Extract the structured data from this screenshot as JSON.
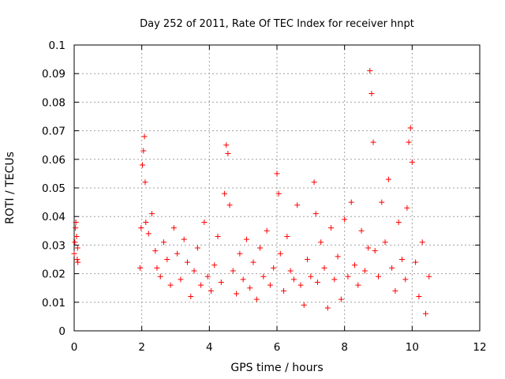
{
  "chart_data": {
    "type": "scatter",
    "title": "Day 252 of 2011, Rate Of TEC Index for receiver hnpt",
    "xlabel": "GPS time / hours",
    "ylabel": "ROTI / TECUs",
    "xlim": [
      0,
      12
    ],
    "ylim": [
      0,
      0.1
    ],
    "xticks": [
      "0",
      "2",
      "4",
      "6",
      "8",
      "10",
      "12"
    ],
    "yticks": [
      "0",
      "0.01",
      "0.02",
      "0.03",
      "0.04",
      "0.05",
      "0.06",
      "0.07",
      "0.08",
      "0.09",
      "0.1"
    ],
    "xtick_values": [
      0,
      2,
      4,
      6,
      8,
      10,
      12
    ],
    "ytick_values": [
      0,
      0.01,
      0.02,
      0.03,
      0.04,
      0.05,
      0.06,
      0.07,
      0.08,
      0.09,
      0.1
    ],
    "grid": true,
    "marker": "+",
    "color": "#ff0000",
    "series": [
      {
        "name": "ROTI",
        "x": [
          0.0,
          0.02,
          0.04,
          0.05,
          0.07,
          0.09,
          0.1,
          0.11,
          1.95,
          1.98,
          2.02,
          2.05,
          2.08,
          2.1,
          2.12,
          2.2,
          2.3,
          2.4,
          2.45,
          2.55,
          2.65,
          2.75,
          2.85,
          2.95,
          3.05,
          3.15,
          3.25,
          3.35,
          3.45,
          3.55,
          3.65,
          3.75,
          3.85,
          3.95,
          4.05,
          4.15,
          4.25,
          4.35,
          4.45,
          4.5,
          4.55,
          4.6,
          4.7,
          4.8,
          4.9,
          5.0,
          5.1,
          5.2,
          5.3,
          5.4,
          5.5,
          5.6,
          5.7,
          5.8,
          5.9,
          6.0,
          6.05,
          6.1,
          6.2,
          6.3,
          6.4,
          6.5,
          6.6,
          6.7,
          6.8,
          6.9,
          7.0,
          7.1,
          7.15,
          7.2,
          7.3,
          7.4,
          7.5,
          7.6,
          7.7,
          7.8,
          7.9,
          8.0,
          8.1,
          8.2,
          8.3,
          8.4,
          8.5,
          8.6,
          8.7,
          8.75,
          8.8,
          8.85,
          8.9,
          9.0,
          9.1,
          9.2,
          9.3,
          9.4,
          9.5,
          9.6,
          9.7,
          9.8,
          9.85,
          9.9,
          9.95,
          10.0,
          10.1,
          10.2,
          10.3,
          10.4,
          10.5
        ],
        "y": [
          0.027,
          0.031,
          0.036,
          0.038,
          0.033,
          0.025,
          0.029,
          0.024,
          0.022,
          0.036,
          0.058,
          0.063,
          0.068,
          0.052,
          0.038,
          0.034,
          0.041,
          0.028,
          0.022,
          0.019,
          0.031,
          0.025,
          0.016,
          0.036,
          0.027,
          0.018,
          0.032,
          0.024,
          0.012,
          0.021,
          0.029,
          0.016,
          0.038,
          0.019,
          0.014,
          0.023,
          0.033,
          0.017,
          0.048,
          0.065,
          0.062,
          0.044,
          0.021,
          0.013,
          0.027,
          0.018,
          0.032,
          0.015,
          0.024,
          0.011,
          0.029,
          0.019,
          0.035,
          0.016,
          0.022,
          0.055,
          0.048,
          0.027,
          0.014,
          0.033,
          0.021,
          0.018,
          0.044,
          0.016,
          0.009,
          0.025,
          0.019,
          0.052,
          0.041,
          0.017,
          0.031,
          0.022,
          0.008,
          0.036,
          0.018,
          0.026,
          0.011,
          0.039,
          0.019,
          0.045,
          0.023,
          0.016,
          0.035,
          0.021,
          0.029,
          0.091,
          0.083,
          0.066,
          0.028,
          0.019,
          0.045,
          0.031,
          0.053,
          0.022,
          0.014,
          0.038,
          0.025,
          0.018,
          0.043,
          0.066,
          0.071,
          0.059,
          0.024,
          0.012,
          0.031,
          0.006,
          0.019
        ]
      }
    ]
  }
}
